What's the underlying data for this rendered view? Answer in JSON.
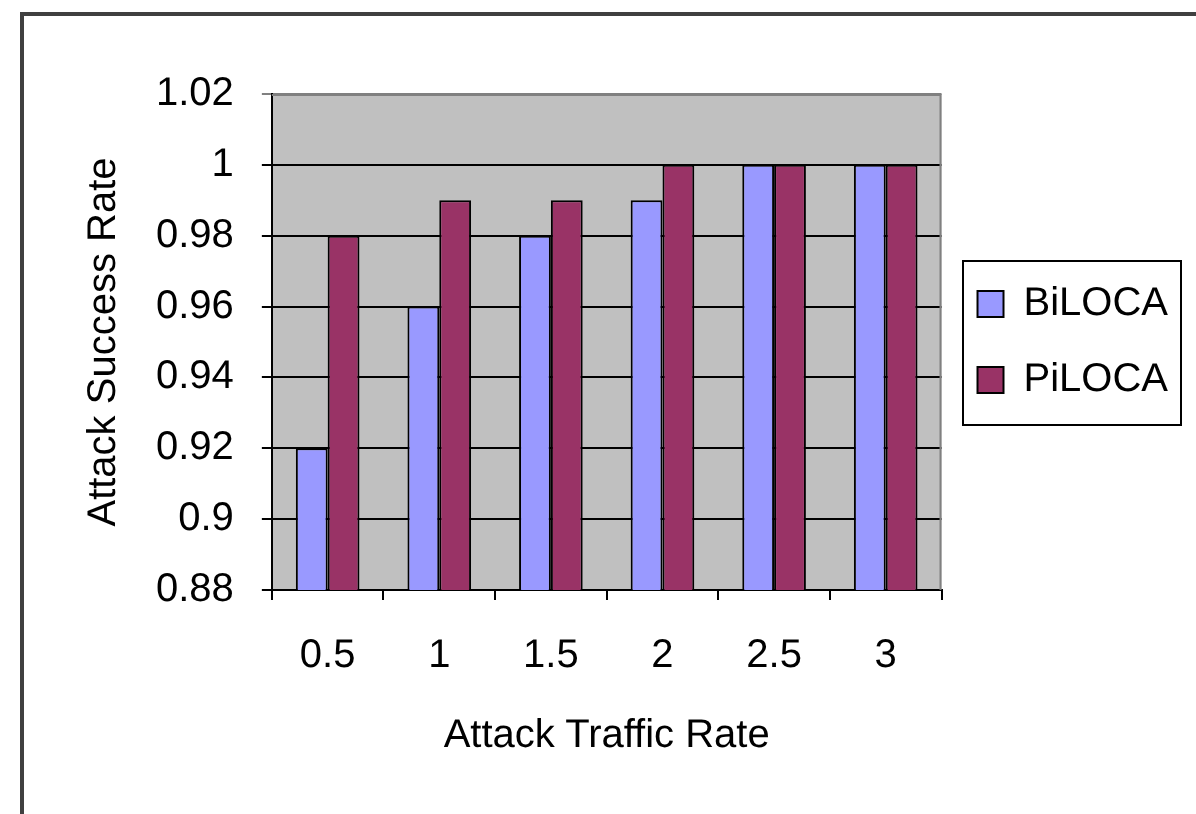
{
  "chart_data": {
    "type": "bar",
    "xlabel": "Attack Traffic Rate",
    "ylabel": "Attack Success Rate",
    "categories": [
      "0.5",
      "1",
      "1.5",
      "2",
      "2.5",
      "3"
    ],
    "series": [
      {
        "name": "BiLOCA",
        "color": "#9999ff",
        "values": [
          0.92,
          0.96,
          0.98,
          0.99,
          1,
          1
        ]
      },
      {
        "name": "PiLOCA",
        "color": "#993366",
        "values": [
          0.98,
          0.99,
          0.99,
          1,
          1,
          1
        ]
      }
    ],
    "ylim": [
      0.88,
      1.02
    ],
    "yticks": [
      0.88,
      0.9,
      0.92,
      0.94,
      0.96,
      0.98,
      1,
      1.02
    ],
    "grid": "y",
    "legend": "right"
  }
}
